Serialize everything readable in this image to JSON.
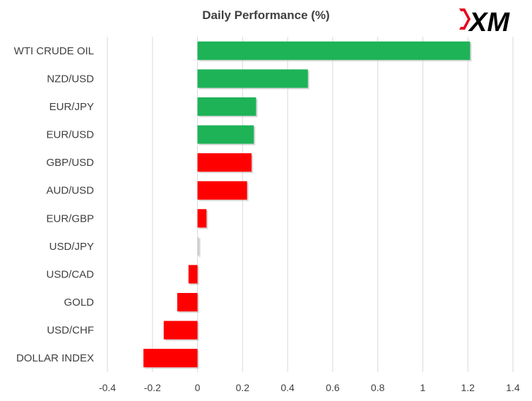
{
  "chart_data": {
    "type": "bar",
    "orientation": "horizontal",
    "title": "Daily Performance  (%)",
    "categories": [
      "WTI CRUDE OIL",
      "NZD/USD",
      "EUR/JPY",
      "EUR/USD",
      "GBP/USD",
      "AUD/USD",
      "EUR/GBP",
      "USD/JPY",
      "USD/CAD",
      "GOLD",
      "USD/CHF",
      "DOLLAR INDEX"
    ],
    "values": [
      1.21,
      0.49,
      0.26,
      0.25,
      0.24,
      0.22,
      0.04,
      0.0,
      -0.04,
      -0.09,
      -0.15,
      -0.24
    ],
    "bar_colors": [
      "#1db356",
      "#1db356",
      "#1db356",
      "#1db356",
      "#ff0000",
      "#ff0000",
      "#ff0000",
      "#cccccc",
      "#ff0000",
      "#ff0000",
      "#ff0000",
      "#ff0000"
    ],
    "xlim": [
      -0.4,
      1.4
    ],
    "xticks": [
      "-0.4",
      "-0.2",
      "0",
      "0.2",
      "0.4",
      "0.6",
      "0.8",
      "1",
      "1.2",
      "1.4"
    ],
    "xtick_values": [
      -0.4,
      -0.2,
      0,
      0.2,
      0.4,
      0.6,
      0.8,
      1,
      1.2,
      1.4
    ],
    "grid": "vertical",
    "legend": "none"
  },
  "logo": {
    "text": "XM",
    "colors": {
      "accent": "#e8001c",
      "text": "#000000"
    }
  }
}
